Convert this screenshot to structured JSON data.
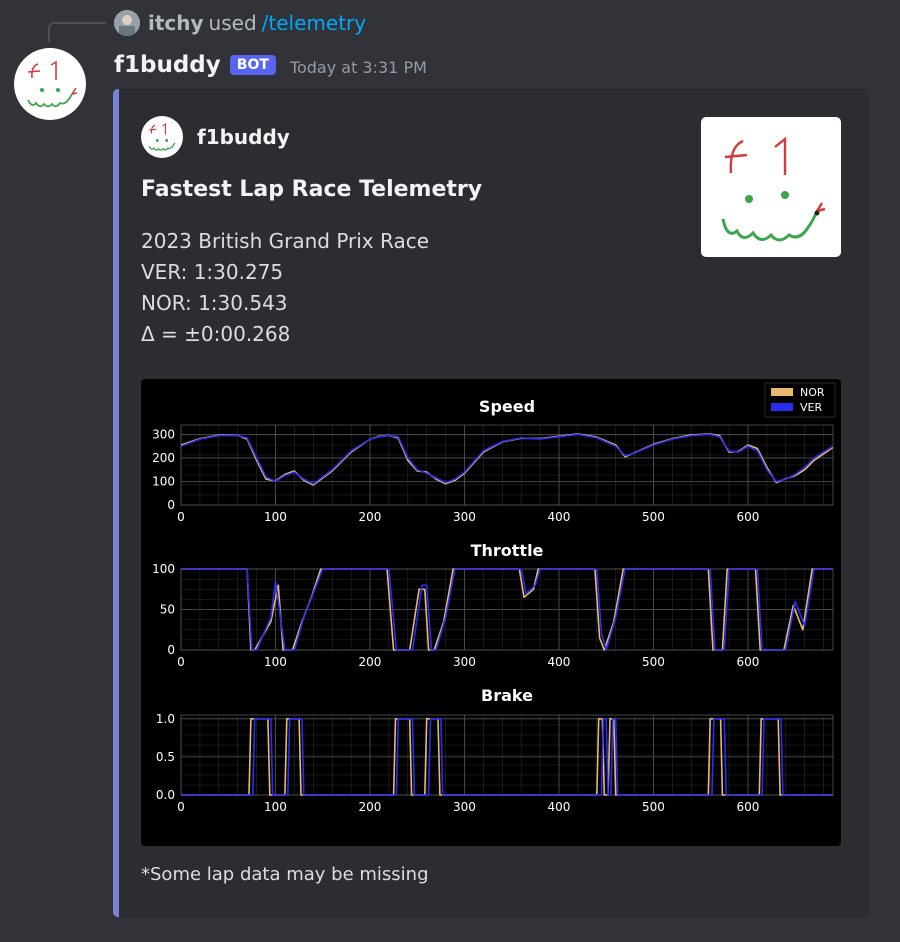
{
  "reply": {
    "user": "itchy",
    "used": "used",
    "command": "/telemetry"
  },
  "message": {
    "username": "f1buddy",
    "bot_tag": "BOT",
    "timestamp": "Today at 3:31 PM"
  },
  "embed": {
    "author": "f1buddy",
    "title": "Fastest Lap Race Telemetry",
    "description": [
      "2023 British Grand Prix Race",
      "VER: 1:30.275",
      "NOR: 1:30.543",
      "Δ = ±0:00.268"
    ],
    "thumbnail_text": "f 1",
    "footer": "*Some lap data may be missing"
  },
  "colors": {
    "NOR": "#e8b96f",
    "VER": "#2a2df0",
    "accent": "#7a82d6",
    "bot": "#5865f2"
  },
  "chart_data": [
    {
      "type": "line",
      "title": "Speed",
      "xlim": [
        0,
        690
      ],
      "ylim": [
        0,
        340
      ],
      "xticks": [
        0,
        100,
        200,
        300,
        400,
        500,
        600
      ],
      "yticks": [
        0,
        100,
        200,
        300
      ],
      "legend": [
        "NOR",
        "VER"
      ],
      "legend_position": "top-right",
      "series": [
        {
          "name": "VER",
          "x": [
            0,
            20,
            40,
            60,
            70,
            80,
            90,
            100,
            110,
            120,
            130,
            140,
            160,
            180,
            200,
            210,
            220,
            230,
            240,
            250,
            260,
            270,
            280,
            290,
            300,
            320,
            340,
            360,
            380,
            400,
            420,
            440,
            460,
            470,
            480,
            500,
            520,
            540,
            560,
            570,
            580,
            590,
            600,
            610,
            620,
            630,
            640,
            650,
            660,
            670,
            690
          ],
          "y": [
            250,
            280,
            295,
            295,
            285,
            200,
            120,
            100,
            125,
            140,
            110,
            90,
            150,
            230,
            280,
            290,
            295,
            290,
            200,
            150,
            135,
            115,
            95,
            110,
            140,
            230,
            270,
            285,
            280,
            290,
            300,
            285,
            250,
            210,
            220,
            255,
            280,
            295,
            300,
            290,
            230,
            225,
            250,
            230,
            150,
            100,
            110,
            130,
            160,
            200,
            250
          ]
        },
        {
          "name": "NOR",
          "x": [
            0,
            20,
            40,
            60,
            70,
            80,
            90,
            100,
            110,
            120,
            130,
            140,
            160,
            180,
            200,
            210,
            220,
            230,
            240,
            250,
            260,
            270,
            280,
            290,
            300,
            320,
            340,
            360,
            380,
            400,
            420,
            440,
            460,
            470,
            480,
            500,
            520,
            540,
            560,
            570,
            580,
            590,
            600,
            610,
            620,
            630,
            640,
            650,
            660,
            670,
            690
          ],
          "y": [
            255,
            282,
            297,
            296,
            280,
            190,
            110,
            102,
            130,
            145,
            105,
            85,
            145,
            225,
            280,
            292,
            295,
            285,
            190,
            145,
            140,
            110,
            90,
            105,
            135,
            225,
            268,
            284,
            282,
            292,
            302,
            288,
            255,
            205,
            222,
            258,
            282,
            298,
            302,
            295,
            225,
            228,
            255,
            240,
            160,
            95,
            112,
            125,
            150,
            190,
            245
          ]
        }
      ]
    },
    {
      "type": "line",
      "title": "Throttle",
      "xlim": [
        0,
        690
      ],
      "ylim": [
        0,
        100
      ],
      "xticks": [
        0,
        100,
        200,
        300,
        400,
        500,
        600
      ],
      "yticks": [
        0,
        50,
        100
      ],
      "series": [
        {
          "name": "VER",
          "x": [
            0,
            70,
            75,
            80,
            95,
            100,
            110,
            115,
            120,
            130,
            140,
            150,
            160,
            190,
            220,
            228,
            233,
            245,
            255,
            260,
            265,
            270,
            280,
            290,
            300,
            320,
            360,
            365,
            375,
            380,
            390,
            420,
            440,
            445,
            450,
            460,
            470,
            480,
            500,
            550,
            560,
            565,
            575,
            580,
            600,
            610,
            615,
            620,
            640,
            650,
            660,
            670,
            690
          ],
          "y": [
            100,
            100,
            0,
            0,
            40,
            85,
            0,
            0,
            0,
            40,
            70,
            100,
            100,
            100,
            100,
            0,
            0,
            0,
            80,
            80,
            0,
            0,
            40,
            100,
            100,
            100,
            100,
            70,
            80,
            100,
            100,
            100,
            100,
            20,
            0,
            40,
            100,
            100,
            100,
            100,
            100,
            0,
            0,
            100,
            100,
            100,
            0,
            0,
            0,
            60,
            30,
            100,
            100
          ]
        },
        {
          "name": "NOR",
          "x": [
            0,
            70,
            74,
            78,
            95,
            103,
            108,
            113,
            118,
            128,
            138,
            148,
            158,
            188,
            218,
            225,
            230,
            242,
            252,
            258,
            262,
            268,
            278,
            288,
            298,
            318,
            358,
            363,
            373,
            378,
            388,
            418,
            438,
            443,
            448,
            458,
            468,
            478,
            498,
            548,
            558,
            563,
            573,
            578,
            598,
            608,
            613,
            618,
            638,
            648,
            658,
            668,
            690
          ],
          "y": [
            100,
            100,
            0,
            0,
            35,
            80,
            0,
            0,
            0,
            35,
            65,
            100,
            100,
            100,
            100,
            0,
            0,
            0,
            75,
            75,
            0,
            0,
            35,
            100,
            100,
            100,
            100,
            65,
            75,
            100,
            100,
            100,
            100,
            15,
            0,
            35,
            100,
            100,
            100,
            100,
            100,
            0,
            0,
            100,
            100,
            100,
            0,
            0,
            0,
            55,
            25,
            100,
            100
          ]
        }
      ]
    },
    {
      "type": "line",
      "title": "Brake",
      "xlim": [
        0,
        690
      ],
      "ylim": [
        0,
        1.05
      ],
      "xticks": [
        0,
        100,
        200,
        300,
        400,
        500,
        600
      ],
      "yticks": [
        0.0,
        0.5,
        1.0
      ],
      "series": [
        {
          "name": "VER",
          "x": [
            0,
            76,
            78,
            95,
            97,
            113,
            115,
            128,
            130,
            228,
            230,
            245,
            247,
            262,
            264,
            275,
            277,
            445,
            447,
            450,
            452,
            455,
            457,
            460,
            462,
            470,
            472,
            562,
            564,
            575,
            577,
            615,
            617,
            635,
            637,
            690
          ],
          "y": [
            0,
            0,
            1,
            1,
            0,
            0,
            1,
            1,
            0,
            0,
            1,
            1,
            0,
            0,
            1,
            1,
            0,
            0,
            1,
            1,
            0,
            0,
            1,
            1,
            0,
            0,
            0,
            0,
            1,
            1,
            0,
            0,
            1,
            1,
            0,
            0
          ]
        },
        {
          "name": "NOR",
          "x": [
            0,
            72,
            74,
            92,
            94,
            110,
            112,
            125,
            127,
            225,
            227,
            242,
            244,
            258,
            260,
            272,
            274,
            440,
            442,
            446,
            448,
            452,
            454,
            458,
            460,
            466,
            468,
            558,
            560,
            571,
            573,
            612,
            614,
            632,
            634,
            690
          ],
          "y": [
            0,
            0,
            1,
            1,
            0,
            0,
            1,
            1,
            0,
            0,
            1,
            1,
            0,
            0,
            1,
            1,
            0,
            0,
            1,
            1,
            0,
            0,
            1,
            1,
            0,
            0,
            0,
            0,
            1,
            1,
            0,
            0,
            1,
            1,
            0,
            0
          ]
        }
      ]
    }
  ]
}
